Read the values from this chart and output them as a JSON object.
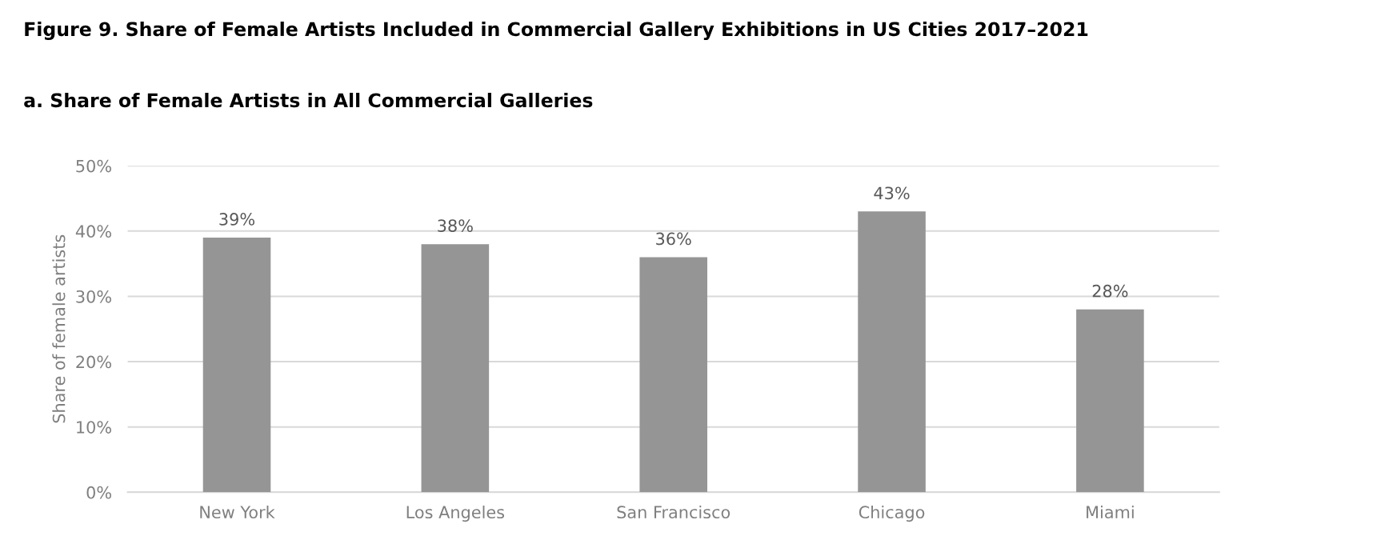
{
  "chart_data": {
    "type": "bar",
    "title": "Figure 9. Share of Female Artists Included in Commercial Gallery Exhibitions in US Cities 2017–2021",
    "subtitle": "a. Share of Female Artists in All Commercial Galleries",
    "ylabel": "Share of female artists",
    "categories": [
      "New York",
      "Los Angeles",
      "San Francisco",
      "Chicago",
      "Miami"
    ],
    "values": [
      39,
      38,
      36,
      43,
      28
    ],
    "value_labels": [
      "39%",
      "38%",
      "36%",
      "43%",
      "28%"
    ],
    "color": "#959595",
    "ylim": [
      0,
      50
    ],
    "yticks": [
      {
        "value": 0,
        "label": "0%"
      },
      {
        "value": 10,
        "label": "10%"
      },
      {
        "value": 20,
        "label": "20%"
      },
      {
        "value": 30,
        "label": "30%"
      },
      {
        "value": 40,
        "label": "40%"
      },
      {
        "value": 50,
        "label": "50%"
      }
    ],
    "grid": "y"
  }
}
